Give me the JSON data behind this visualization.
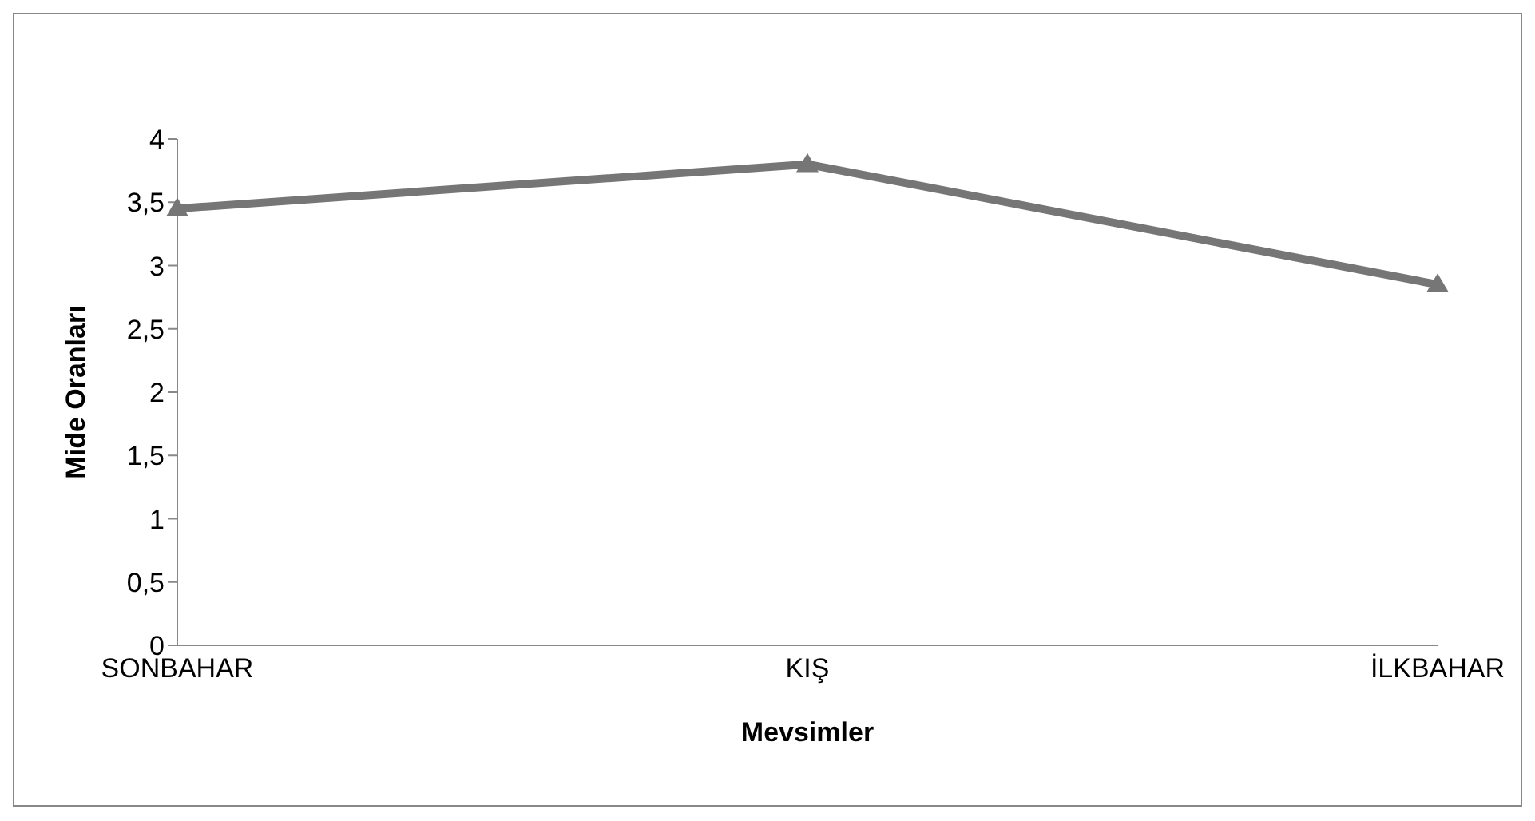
{
  "chart_data": {
    "type": "line",
    "xlabel": "Mevsimler",
    "ylabel": "Mide Oranları",
    "categories": [
      "SONBAHAR",
      "KIŞ",
      "İLKBAHAR"
    ],
    "series": [
      {
        "color": "#767676",
        "values": [
          3.45,
          3.8,
          2.85
        ]
      }
    ],
    "ylim": [
      0,
      4
    ],
    "yticks": [
      0,
      {
        "value": 0.5,
        "label": "0,5"
      },
      1,
      {
        "value": 1.5,
        "label": "1,5"
      },
      2,
      {
        "value": 2.5,
        "label": "2,5"
      },
      3,
      {
        "value": 3.5,
        "label": "3,5"
      },
      4
    ],
    "grid": false,
    "legend": false,
    "marker": "triangle",
    "line_style": "solid"
  }
}
